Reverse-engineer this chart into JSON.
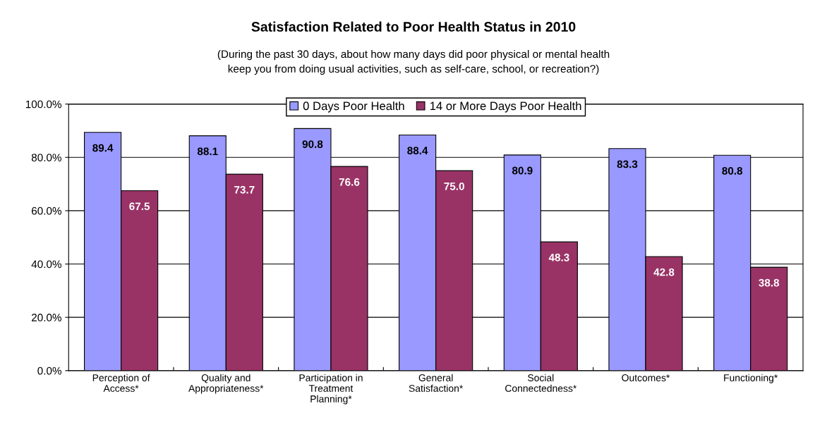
{
  "chart_data": {
    "type": "bar",
    "title": "Satisfaction Related to Poor Health Status in 2010",
    "subtitle": "(During the past 30 days, about how many days did poor physical or mental health\nkeep you from doing usual activities, such as self-care, school, or recreation?)",
    "categories": [
      "Perception of\nAccess*",
      "Quality and\nAppropriateness*",
      "Participation in\nTreatment\nPlanning*",
      "General\nSatisfaction*",
      "Social\nConnectedness*",
      "Outcomes*",
      "Functioning*"
    ],
    "series": [
      {
        "name": "0 Days Poor Health",
        "color": "#9999ff",
        "values": [
          89.4,
          88.1,
          90.8,
          88.4,
          80.9,
          83.3,
          80.8
        ],
        "value_labels": [
          "89.4",
          "88.1",
          "90.8",
          "88.4",
          "80.9",
          "83.3",
          "80.8"
        ]
      },
      {
        "name": "14 or More Days Poor Health",
        "color": "#993366",
        "values": [
          67.5,
          73.7,
          76.6,
          75.0,
          48.3,
          42.8,
          38.8
        ],
        "value_labels": [
          "67.5",
          "73.7",
          "76.6",
          "75.0",
          "48.3",
          "42.8",
          "38.8"
        ]
      }
    ],
    "ylim": [
      0,
      100
    ],
    "yticks": [
      {
        "value": 0,
        "label": "0.0%"
      },
      {
        "value": 20,
        "label": "20.0%"
      },
      {
        "value": 40,
        "label": "40.0%"
      },
      {
        "value": 60,
        "label": "60.0%"
      },
      {
        "value": 80,
        "label": "80.0%"
      },
      {
        "value": 100,
        "label": "100.0%"
      }
    ],
    "grid": "y",
    "legend": "top"
  }
}
